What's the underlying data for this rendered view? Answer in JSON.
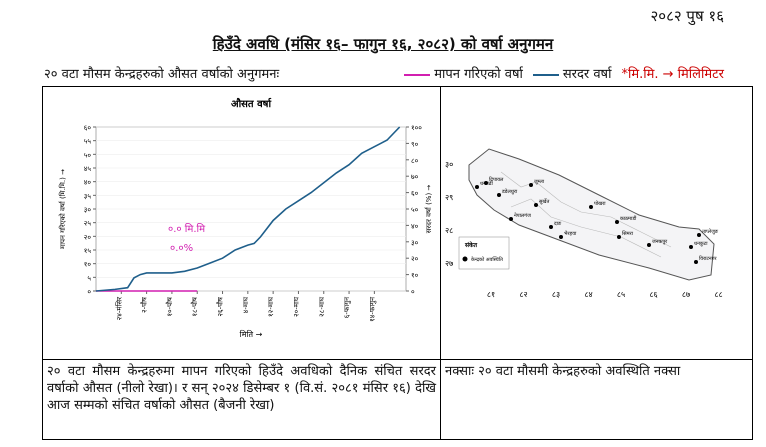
{
  "header": {
    "date": "२०८२ पुष १६",
    "title": "हिउँदे अवधि (मंसिर १६– फागुन १६, २०८२) को वर्षा अनुगमन"
  },
  "intro": "२० वटा मौसम केन्द्रहरुको औसत वर्षाको अनुगमनः",
  "legend_note": "*मि.मि. → मिलिमिटर",
  "chart_data": {
    "type": "line",
    "title": "औसत वर्षा",
    "x_label": "मिति →",
    "y_label": "मापन गरिएको वर्षा (मि.मि.) →",
    "y2_label": "सरदर वर्षा (%) →",
    "xlim": [
      0,
      98
    ],
    "xticks": [
      {
        "value": 8,
        "label": "२४-मंसिर"
      },
      {
        "value": 16,
        "label": "२-पौष"
      },
      {
        "value": 24,
        "label": "१०-पौष"
      },
      {
        "value": 32,
        "label": "१८-पौष"
      },
      {
        "value": 40,
        "label": "२६-पौष"
      },
      {
        "value": 48,
        "label": "४-माघ"
      },
      {
        "value": 56,
        "label": "१२-माघ"
      },
      {
        "value": 64,
        "label": "२०-माघ"
      },
      {
        "value": 72,
        "label": "२८-माघ"
      },
      {
        "value": 80,
        "label": "६-फागुन"
      },
      {
        "value": 88,
        "label": "१४-फागुन"
      }
    ],
    "ylim": [
      0,
      60
    ],
    "yticks": [
      {
        "value": 0,
        "label": "०"
      },
      {
        "value": 5,
        "label": "५"
      },
      {
        "value": 10,
        "label": "१०"
      },
      {
        "value": 15,
        "label": "१५"
      },
      {
        "value": 20,
        "label": "२०"
      },
      {
        "value": 25,
        "label": "२५"
      },
      {
        "value": 30,
        "label": "३०"
      },
      {
        "value": 35,
        "label": "३५"
      },
      {
        "value": 40,
        "label": "४०"
      },
      {
        "value": 45,
        "label": "४५"
      },
      {
        "value": 50,
        "label": "५०"
      },
      {
        "value": 55,
        "label": "५५"
      },
      {
        "value": 60,
        "label": "६०"
      }
    ],
    "y2lim": [
      0,
      100
    ],
    "y2ticks": [
      {
        "value": 0,
        "label": "०"
      },
      {
        "value": 10,
        "label": "१०"
      },
      {
        "value": 20,
        "label": "२०"
      },
      {
        "value": 30,
        "label": "३०"
      },
      {
        "value": 40,
        "label": "४०"
      },
      {
        "value": 50,
        "label": "५०"
      },
      {
        "value": 60,
        "label": "६०"
      },
      {
        "value": 70,
        "label": "७०"
      },
      {
        "value": 80,
        "label": "८०"
      },
      {
        "value": 90,
        "label": "९०"
      },
      {
        "value": 100,
        "label": "१००"
      }
    ],
    "x": [
      0,
      6,
      10,
      12,
      14,
      16,
      20,
      24,
      28,
      32,
      36,
      40,
      44,
      48,
      50,
      52,
      56,
      60,
      64,
      68,
      72,
      76,
      80,
      84,
      88,
      92,
      96
    ],
    "series": [
      {
        "name": "मापन गरिएको वर्षा",
        "color": "#d21fb0",
        "axis": "y",
        "values": [
          0,
          0,
          0,
          0,
          0,
          0,
          0,
          0,
          0,
          0,
          null,
          null,
          null,
          null,
          null,
          null,
          null,
          null,
          null,
          null,
          null,
          null,
          null,
          null,
          null,
          null,
          null
        ]
      },
      {
        "name": "सरदर वर्षा",
        "color": "#1f5f8b",
        "axis": "y2",
        "values": [
          0,
          1,
          2,
          8,
          10,
          11,
          11,
          11,
          12,
          14,
          17,
          20,
          25,
          28,
          29,
          33,
          43,
          50,
          55,
          60,
          66,
          72,
          77,
          84,
          88,
          92,
          100
        ]
      }
    ],
    "annotations": [
      "०.० मि.मि",
      "०.०%"
    ]
  },
  "map": {
    "lat_ticks": [
      "३०",
      "२९",
      "२८",
      "२७"
    ],
    "lon_ticks": [
      "८१",
      "८२",
      "८३",
      "८४",
      "८५",
      "८६",
      "८७",
      "८८"
    ],
    "stations": [
      "धनगढी",
      "दिपायल",
      "जुम्ला",
      "डडेलधुरा",
      "सुर्खेत",
      "नेपालगंज",
      "दाङ",
      "भैरहवा",
      "पोखरा",
      "काठमाडौं",
      "सिमरा",
      "जनकपुर",
      "धनकुटा",
      "विराटनगर",
      "ताप्लेजुङ"
    ],
    "legend_title": "संकेत",
    "legend_item": "केन्द्रको अवस्थिति"
  },
  "table": {
    "caption_left": "२० वटा मौसम केन्द्रहरुमा मापन गरिएको हिउँदे अवधिको दैनिक संचित सरदर वर्षाको औसत (नीलो रेखा)। र सन् २०२४ डिसेम्बर १ (वि.सं. २०८१ मंसिर १६) देखि आज सम्मको संचित वर्षाको औसत (बैजनी रेखा)",
    "caption_right": "नक्साः २० वटा मौसमी केन्द्रहरुको अवस्थिति नक्सा"
  }
}
